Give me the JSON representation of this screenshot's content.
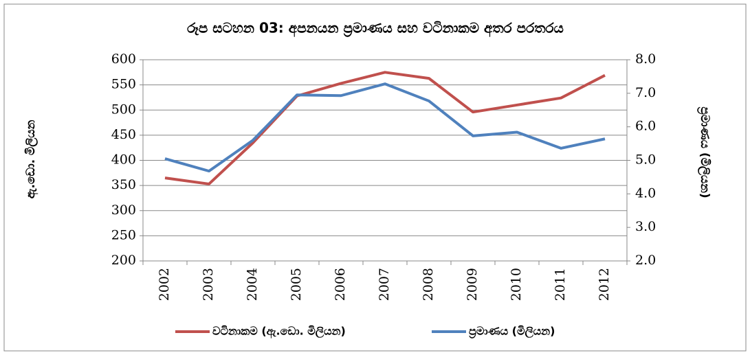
{
  "chart_data": {
    "type": "line",
    "title": "රූප සටහන 03: අපනයන ප්‍රමාණය සහ වටිනාකම අතර පරතරය",
    "ylabel": "ඇ.ඩො. මිලියන",
    "y2label": "ප්‍රමාණය (මිලියන)",
    "categories": [
      "2002",
      "2003",
      "2004",
      "2005",
      "2006",
      "2007",
      "2008",
      "2009",
      "2010",
      "2011",
      "2012"
    ],
    "series": [
      {
        "name": "වටිනාකම (ඇ.ඩො. මිලියන)",
        "color": "#c0504d",
        "values": [
          365,
          353,
          435,
          528,
          553,
          575,
          563,
          496,
          510,
          524,
          569
        ]
      },
      {
        "name": "ප්‍රමාණය (මිලියන)",
        "color": "#4f81bd",
        "axis": "y2",
        "values": [
          5.05,
          4.68,
          5.6,
          6.95,
          6.93,
          7.28,
          6.77,
          5.73,
          5.84,
          5.36,
          5.64
        ]
      }
    ],
    "ylim": [
      200,
      600
    ],
    "yticks": [
      200,
      250,
      300,
      350,
      400,
      450,
      500,
      550,
      600
    ],
    "y2lim": [
      2,
      8
    ],
    "y2ticks": [
      {
        "value": 2,
        "label": "2.0"
      },
      {
        "value": 3,
        "label": "3.0"
      },
      {
        "value": 4,
        "label": "4.0"
      },
      {
        "value": 5,
        "label": "5.0"
      },
      {
        "value": 6,
        "label": "6.0"
      },
      {
        "value": 7,
        "label": "7.0"
      },
      {
        "value": 8,
        "label": "8.0"
      }
    ],
    "grid": true,
    "legend": "bottom"
  }
}
